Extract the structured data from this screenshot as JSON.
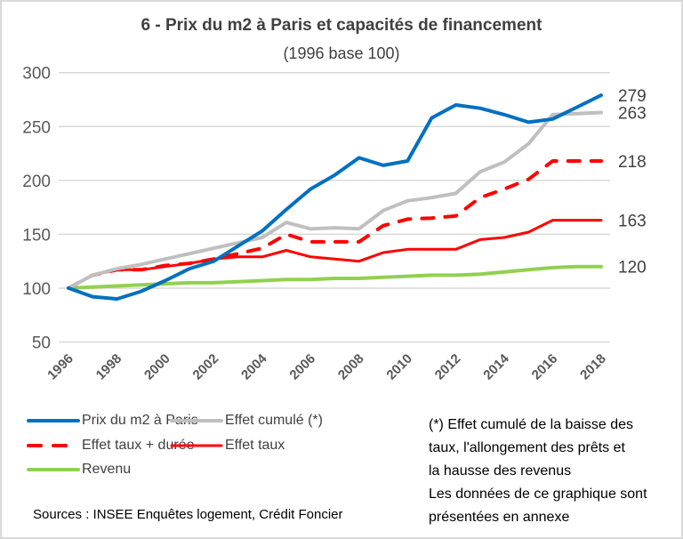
{
  "chart_data": {
    "type": "line",
    "title": "6 - Prix du m2 à Paris et capacités de financement",
    "subtitle": "(1996 base 100)",
    "x": [
      1996,
      1997,
      1998,
      1999,
      2000,
      2001,
      2002,
      2003,
      2004,
      2005,
      2006,
      2007,
      2008,
      2009,
      2010,
      2011,
      2012,
      2013,
      2014,
      2015,
      2016,
      2017,
      2018
    ],
    "x_tick_labels": [
      "1996",
      "1998",
      "2000",
      "2002",
      "2004",
      "2006",
      "2008",
      "2010",
      "2012",
      "2014",
      "2016",
      "2018"
    ],
    "y_tick_labels": [
      "50",
      "100",
      "150",
      "200",
      "250",
      "300"
    ],
    "ylim": [
      50,
      300
    ],
    "grid": "horizontal",
    "legend_placement": "bottom",
    "series": [
      {
        "name": "Prix du m2 à Paris",
        "color": "#0070c0",
        "dash": false,
        "end_label": "279",
        "values": [
          100,
          92,
          90,
          97,
          107,
          118,
          125,
          139,
          153,
          173,
          192,
          205,
          221,
          214,
          218,
          258,
          270,
          267,
          261,
          254,
          257,
          268,
          279
        ]
      },
      {
        "name": "Effet cumulé (*)",
        "color": "#bfbfbf",
        "dash": false,
        "end_label": "263",
        "values": [
          100,
          112,
          118,
          122,
          127,
          132,
          137,
          142,
          147,
          161,
          155,
          156,
          155,
          172,
          181,
          184,
          188,
          208,
          217,
          234,
          261,
          262,
          263
        ]
      },
      {
        "name": "Effet taux + durée",
        "color": "#ff0000",
        "dash": true,
        "end_label": "218",
        "values": [
          100,
          112,
          117,
          117,
          121,
          123,
          127,
          132,
          137,
          150,
          143,
          143,
          143,
          158,
          164,
          165,
          167,
          184,
          192,
          201,
          218,
          218,
          218
        ]
      },
      {
        "name": "Effet taux",
        "color": "#ff0000",
        "dash": false,
        "end_label": "163",
        "values": [
          100,
          112,
          117,
          117,
          120,
          123,
          127,
          129,
          129,
          135,
          129,
          127,
          125,
          133,
          136,
          136,
          136,
          145,
          147,
          152,
          163,
          163,
          163
        ]
      },
      {
        "name": "Revenu",
        "color": "#92d050",
        "dash": false,
        "end_label": "120",
        "values": [
          100,
          101,
          102,
          103,
          104,
          105,
          105,
          106,
          107,
          108,
          108,
          109,
          109,
          110,
          111,
          112,
          112,
          113,
          115,
          117,
          119,
          120,
          120
        ]
      }
    ],
    "note": [
      "(*) Effet cumulé de la baisse  des",
      "taux, l'allongement des prêts et",
      "la hausse des revenus",
      "Les données de ce graphique sont",
      "présentées en annexe"
    ],
    "sources": "Sources : INSEE Enquêtes logement, Crédit Foncier"
  }
}
